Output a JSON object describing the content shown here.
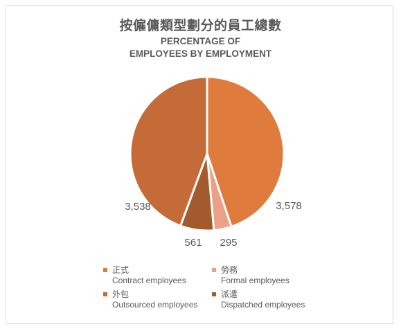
{
  "chart_data": {
    "type": "pie",
    "title": "按僱傭類型劃分的員工總數",
    "subtitle_lines": [
      "PERCENTAGE OF",
      "EMPLOYEES BY EMPLOYMENT"
    ],
    "series": [
      {
        "values": [
          3578,
          295,
          561,
          3538
        ],
        "labels": [
          "3,578",
          "295",
          "561",
          "3,538"
        ]
      }
    ],
    "categories": [
      {
        "cn": "正式",
        "en": "Contract employees"
      },
      {
        "cn": "勞務",
        "en": "Formal employees"
      },
      {
        "cn": "派遣",
        "en": "Dispatched employees"
      },
      {
        "cn": "外包",
        "en": "Outsourced employees"
      }
    ],
    "colors": [
      "#e07b3e",
      "#eba088",
      "#a35a2c",
      "#c46b38"
    ],
    "legend": {
      "placement": "bottom",
      "order": [
        0,
        1,
        3,
        2
      ]
    }
  }
}
